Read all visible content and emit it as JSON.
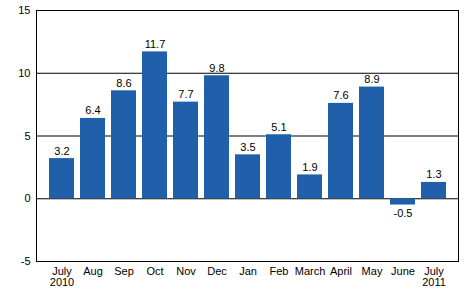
{
  "chart_data": {
    "type": "bar",
    "categories": [
      "July\n2010",
      "Aug",
      "Sep",
      "Oct",
      "Nov",
      "Dec",
      "Jan",
      "Feb",
      "March",
      "April",
      "May",
      "June",
      "July\n2011"
    ],
    "values": [
      3.2,
      6.4,
      8.6,
      11.7,
      7.7,
      9.8,
      3.5,
      5.1,
      1.9,
      7.6,
      8.9,
      -0.5,
      1.3
    ],
    "color": "#2060aa",
    "ylim": [
      -5,
      15
    ],
    "yticks": [
      -5,
      0,
      5,
      10,
      15
    ],
    "grid": true,
    "data_labels": true
  }
}
